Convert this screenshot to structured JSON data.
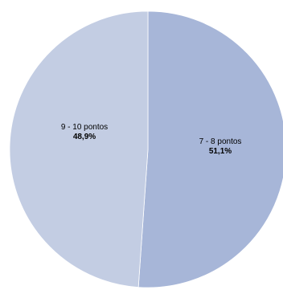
{
  "chart_data": {
    "type": "pie",
    "title": "",
    "slices": [
      {
        "label": "7 - 8 pontos",
        "value": 51.1,
        "value_label": "51,1%",
        "color": "#a7b6d8"
      },
      {
        "label": "9 - 10 pontos",
        "value": 48.9,
        "value_label": "48,9%",
        "color": "#c3cde3"
      }
    ],
    "start_angle_deg": 0,
    "direction": "clockwise",
    "legend": "none"
  }
}
